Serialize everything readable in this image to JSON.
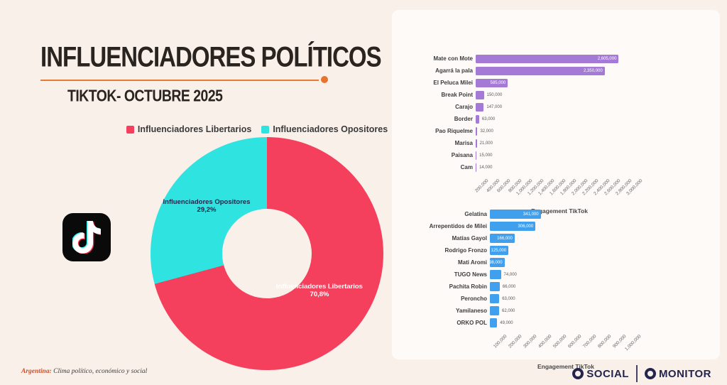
{
  "header": {
    "title": "INFLUENCIADORES POLÍTICOS",
    "subtitle": "TIKTOK- OCTUBRE 2025",
    "accent_color": "#e87b2f"
  },
  "legend": {
    "items": [
      {
        "label": "Influenciadores Libertarios",
        "color": "#f4405c"
      },
      {
        "label": "Influenciadores Opositores",
        "color": "#2fe4e0"
      }
    ]
  },
  "tiktok_logo": {
    "name": "tiktok-logo",
    "colors": {
      "bg": "#0a0a0a",
      "note": "#ffffff",
      "shadow_cyan": "#25f4ee",
      "shadow_red": "#fe2c55"
    }
  },
  "chart_data": [
    {
      "type": "pie",
      "hole": true,
      "slices": [
        {
          "label": "Influenciadores Libertarios",
          "pct": 70.8,
          "pct_label": "70,8%",
          "color": "#f4405c",
          "text_color": "#ffffff"
        },
        {
          "label": "Influenciadores Opositores",
          "pct": 29.2,
          "pct_label": "29,2%",
          "color": "#2fe4e0",
          "text_color": "#16284a"
        }
      ]
    },
    {
      "type": "bar",
      "orientation": "horizontal",
      "color": "#a57ad6",
      "categories": [
        "Mate con Mote",
        "Agarrá la pala",
        "El Peluca Milei",
        "Break Point",
        "Carajo",
        "Border",
        "Pao Riquelme",
        "Marisa",
        "Paisana",
        "Cam"
      ],
      "values": [
        2605000,
        2350000,
        585000,
        150000,
        147000,
        63000,
        32000,
        21000,
        15000,
        14000
      ],
      "value_labels": [
        "2,605,000",
        "2,350,000",
        "585,000",
        "150,000",
        "147,000",
        "63,000",
        "32,000",
        "21,000",
        "15,000",
        "14,000"
      ],
      "xlabel": "Engagement TikTok",
      "xlim": [
        0,
        3000000
      ],
      "xticks": [
        "200,000",
        "400,000",
        "600,000",
        "800,000",
        "1,000,000",
        "1,200,000",
        "1,400,000",
        "1,600,000",
        "1,800,000",
        "2,000,000",
        "2,200,000",
        "2,400,000",
        "2,600,000",
        "2,800,000",
        "3,000,000"
      ]
    },
    {
      "type": "bar",
      "orientation": "horizontal",
      "color": "#41a0ee",
      "categories": [
        "Gelatina",
        "Arrepentidos de Milei",
        "Matías Gayol",
        "Rodrigo Fronzo",
        "Mati Aromi",
        "TUGO News",
        "Pachita Robin",
        "Peroncho",
        "Yamilaneso",
        "ORKO POL"
      ],
      "values": [
        341000,
        306000,
        166000,
        125000,
        98000,
        74000,
        66000,
        63000,
        62000,
        49000
      ],
      "value_labels": [
        "341,000",
        "306,000",
        "166,000",
        "125,000",
        "98,000",
        "74,000",
        "66,000",
        "63,000",
        "62,000",
        "49,000"
      ],
      "xlabel": "Engagement TikTok",
      "xlim": [
        0,
        1000000
      ],
      "xticks": [
        "100,000",
        "200,000",
        "300,000",
        "400,000",
        "500,000",
        "600,000",
        "700,000",
        "800,000",
        "900,000",
        "1,000,000"
      ]
    }
  ],
  "footer": {
    "note_prefix": "Argentina:",
    "note_text": " Clima político, económico y social",
    "logo1": "SOCIAL",
    "logo2": "MONITOR"
  }
}
